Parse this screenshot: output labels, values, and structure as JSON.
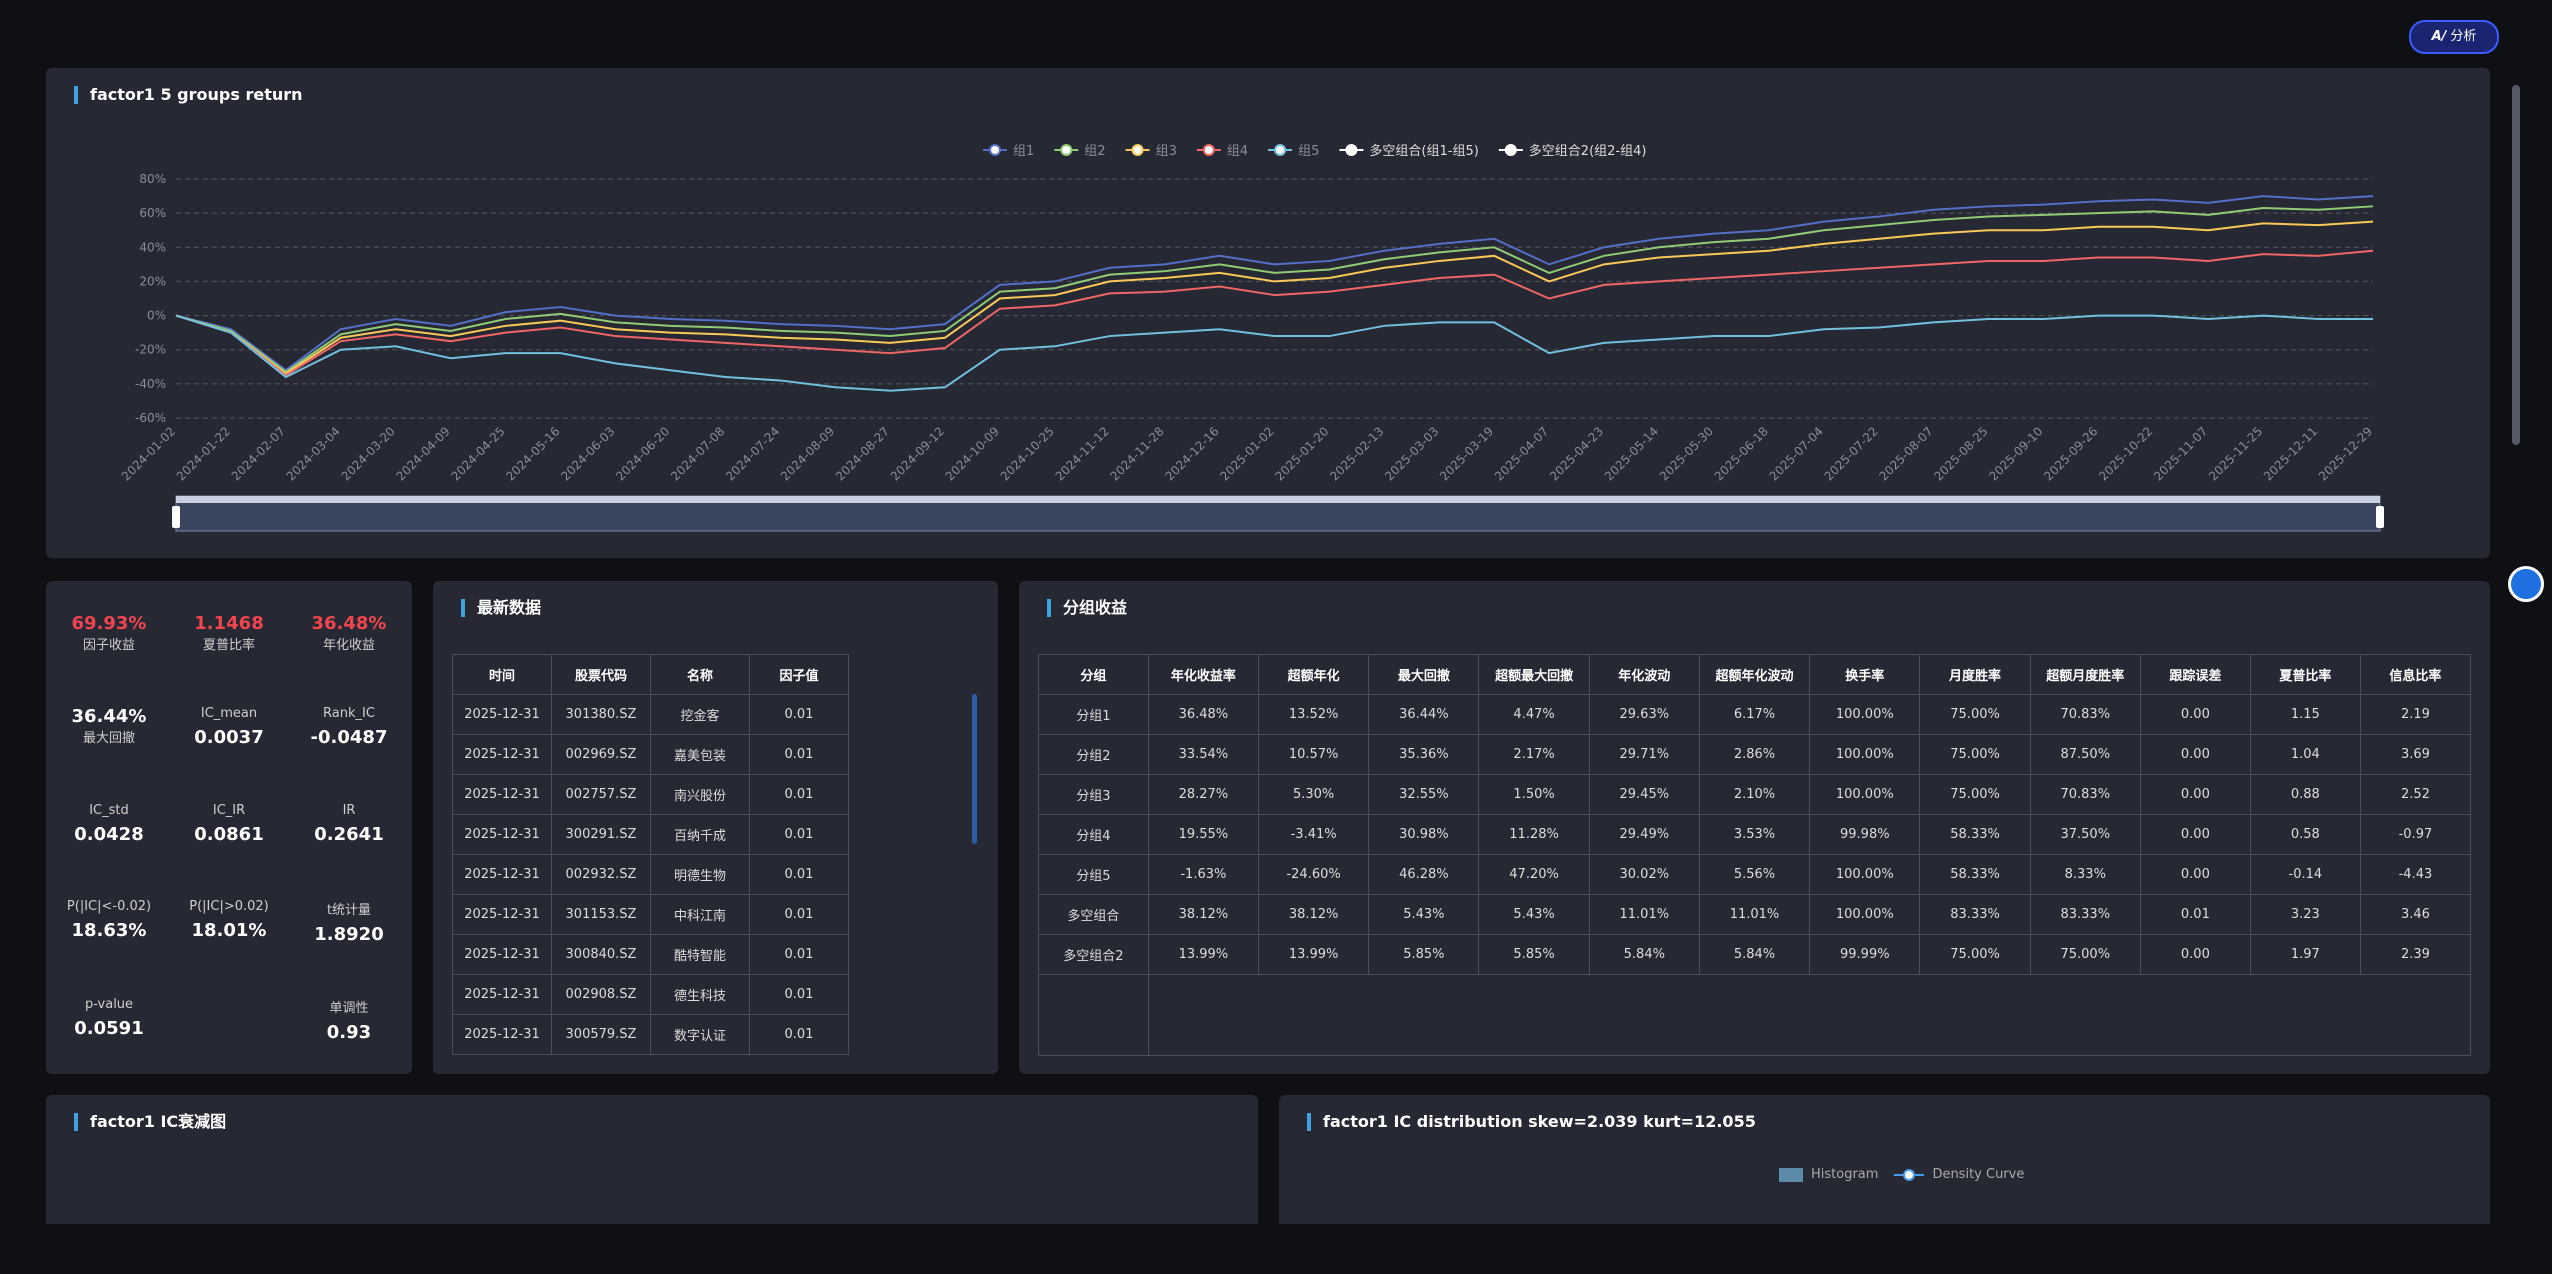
{
  "ai_button": "分析",
  "chart_data": {
    "type": "line",
    "title": "factor1 5 groups return",
    "categories": [
      "2024-01-02",
      "2024-01-22",
      "2024-02-07",
      "2024-03-04",
      "2024-03-20",
      "2024-04-09",
      "2024-04-25",
      "2024-05-16",
      "2024-06-03",
      "2024-06-20",
      "2024-07-08",
      "2024-07-24",
      "2024-08-09",
      "2024-08-27",
      "2024-09-12",
      "2024-10-09",
      "2024-10-25",
      "2024-11-12",
      "2024-11-28",
      "2024-12-16",
      "2025-01-02",
      "2025-01-20",
      "2025-02-13",
      "2025-03-03",
      "2025-03-19",
      "2025-04-07",
      "2025-04-23",
      "2025-05-14",
      "2025-05-30",
      "2025-06-18",
      "2025-07-04",
      "2025-07-22",
      "2025-08-07",
      "2025-08-25",
      "2025-09-10",
      "2025-09-26",
      "2025-10-22",
      "2025-11-07",
      "2025-11-25",
      "2025-12-11",
      "2025-12-29"
    ],
    "series": [
      {
        "name": "组1",
        "color": "#5470c6",
        "values": [
          0,
          -8,
          -32,
          -8,
          -2,
          -6,
          2,
          5,
          0,
          -2,
          -3,
          -5,
          -6,
          -8,
          -5,
          18,
          20,
          28,
          30,
          35,
          30,
          32,
          38,
          42,
          45,
          30,
          40,
          45,
          48,
          50,
          55,
          58,
          62,
          64,
          65,
          67,
          68,
          66,
          70,
          68,
          70
        ]
      },
      {
        "name": "组2",
        "color": "#91cc75",
        "values": [
          0,
          -9,
          -33,
          -11,
          -5,
          -9,
          -2,
          1,
          -4,
          -6,
          -7,
          -9,
          -10,
          -12,
          -9,
          14,
          16,
          24,
          26,
          30,
          25,
          27,
          33,
          37,
          40,
          25,
          35,
          40,
          43,
          45,
          50,
          53,
          56,
          58,
          59,
          60,
          61,
          59,
          63,
          62,
          64
        ]
      },
      {
        "name": "组3",
        "color": "#fac858",
        "values": [
          0,
          -10,
          -34,
          -13,
          -8,
          -12,
          -6,
          -3,
          -8,
          -10,
          -11,
          -13,
          -14,
          -16,
          -13,
          10,
          12,
          20,
          22,
          25,
          20,
          22,
          28,
          32,
          35,
          20,
          30,
          34,
          36,
          38,
          42,
          45,
          48,
          50,
          50,
          52,
          52,
          50,
          54,
          53,
          55
        ]
      },
      {
        "name": "组4",
        "color": "#ee6666",
        "values": [
          0,
          -10,
          -35,
          -15,
          -11,
          -15,
          -10,
          -7,
          -12,
          -14,
          -16,
          -18,
          -20,
          -22,
          -19,
          4,
          6,
          13,
          14,
          17,
          12,
          14,
          18,
          22,
          24,
          10,
          18,
          20,
          22,
          24,
          26,
          28,
          30,
          32,
          32,
          34,
          34,
          32,
          36,
          35,
          38
        ]
      },
      {
        "name": "组5",
        "color": "#73c0de",
        "values": [
          0,
          -10,
          -36,
          -20,
          -18,
          -25,
          -22,
          -22,
          -28,
          -32,
          -36,
          -38,
          -42,
          -44,
          -42,
          -20,
          -18,
          -12,
          -10,
          -8,
          -12,
          -12,
          -6,
          -4,
          -4,
          -22,
          -16,
          -14,
          -12,
          -12,
          -8,
          -7,
          -4,
          -2,
          -2,
          0,
          0,
          -2,
          0,
          -2,
          -2
        ]
      },
      {
        "name": "多空组合(组1-组5)",
        "color": "#ffffff",
        "values": [
          null,
          null,
          null,
          null,
          null,
          null,
          null,
          null,
          null,
          null,
          null,
          null,
          null,
          null,
          null,
          null,
          null,
          null,
          null,
          null,
          null,
          null,
          null,
          null,
          null,
          null,
          null,
          null,
          null,
          null,
          null,
          null,
          null,
          null,
          null,
          null,
          null,
          null,
          null,
          null,
          null
        ]
      },
      {
        "name": "多空组合2(组2-组4)",
        "color": "#ffffff",
        "values": [
          null,
          null,
          null,
          null,
          null,
          null,
          null,
          null,
          null,
          null,
          null,
          null,
          null,
          null,
          null,
          null,
          null,
          null,
          null,
          null,
          null,
          null,
          null,
          null,
          null,
          null,
          null,
          null,
          null,
          null,
          null,
          null,
          null,
          null,
          null,
          null,
          null,
          null,
          null,
          null,
          null
        ]
      }
    ],
    "ylim": [
      -60,
      80
    ],
    "yticks": [
      {
        "value": -60,
        "label": "-60%"
      },
      {
        "value": -40,
        "label": "-40%"
      },
      {
        "value": -20,
        "label": "-20%"
      },
      {
        "value": 0,
        "label": "0%"
      },
      {
        "value": 20,
        "label": "20%"
      },
      {
        "value": 40,
        "label": "40%"
      },
      {
        "value": 60,
        "label": "60%"
      },
      {
        "value": 80,
        "label": "80%"
      }
    ],
    "grid": true
  },
  "metrics": [
    {
      "value": "69.93%",
      "label": "因子收益",
      "color": "#f0454f"
    },
    {
      "value": "1.1468",
      "label": "夏普比率",
      "color": "#f0454f"
    },
    {
      "value": "36.48%",
      "label": "年化收益",
      "color": "#f0454f"
    },
    {
      "value": "36.44%",
      "label": "最大回撤",
      "color": "#ffffff"
    },
    {
      "value": "0.0037",
      "label": "IC_mean",
      "color": "#ffffff"
    },
    {
      "value": "-0.0487",
      "label": "Rank_IC",
      "color": "#ffffff"
    },
    {
      "value": "0.0428",
      "label": "IC_std",
      "color": "#ffffff"
    },
    {
      "value": "0.0861",
      "label": "IC_IR",
      "color": "#ffffff"
    },
    {
      "value": "0.2641",
      "label": "IR",
      "color": "#ffffff"
    },
    {
      "value": "18.63%",
      "label": "P(|IC|<-0.02)",
      "color": "#ffffff"
    },
    {
      "value": "18.01%",
      "label": "P(|IC|>0.02)",
      "color": "#ffffff"
    },
    {
      "value": "1.8920",
      "label": "t统计量",
      "color": "#ffffff"
    },
    {
      "value": "0.0591",
      "label": "p-value",
      "color": "#ffffff"
    },
    {
      "value": "0.93",
      "label": "单调性",
      "color": "#ffffff"
    }
  ],
  "latest": {
    "title": "最新数据",
    "columns": [
      "时间",
      "股票代码",
      "名称",
      "因子值"
    ],
    "rows": [
      [
        "2025-12-31",
        "301380.SZ",
        "挖金客",
        "0.01"
      ],
      [
        "2025-12-31",
        "002969.SZ",
        "嘉美包装",
        "0.01"
      ],
      [
        "2025-12-31",
        "002757.SZ",
        "南兴股份",
        "0.01"
      ],
      [
        "2025-12-31",
        "300291.SZ",
        "百纳千成",
        "0.01"
      ],
      [
        "2025-12-31",
        "002932.SZ",
        "明德生物",
        "0.01"
      ],
      [
        "2025-12-31",
        "301153.SZ",
        "中科江南",
        "0.01"
      ],
      [
        "2025-12-31",
        "300840.SZ",
        "酷特智能",
        "0.01"
      ],
      [
        "2025-12-31",
        "002908.SZ",
        "德生科技",
        "0.01"
      ],
      [
        "2025-12-31",
        "300579.SZ",
        "数字认证",
        "0.01"
      ]
    ]
  },
  "groups": {
    "title": "分组收益",
    "columns": [
      "分组",
      "年化收益率",
      "超额年化",
      "最大回撤",
      "超额最大回撤",
      "年化波动",
      "超额年化波动",
      "换手率",
      "月度胜率",
      "超额月度胜率",
      "跟踪误差",
      "夏普比率",
      "信息比率"
    ],
    "rows": [
      [
        "分组1",
        "36.48%",
        "13.52%",
        "36.44%",
        "4.47%",
        "29.63%",
        "6.17%",
        "100.00%",
        "75.00%",
        "70.83%",
        "0.00",
        "1.15",
        "2.19"
      ],
      [
        "分组2",
        "33.54%",
        "10.57%",
        "35.36%",
        "2.17%",
        "29.71%",
        "2.86%",
        "100.00%",
        "75.00%",
        "87.50%",
        "0.00",
        "1.04",
        "3.69"
      ],
      [
        "分组3",
        "28.27%",
        "5.30%",
        "32.55%",
        "1.50%",
        "29.45%",
        "2.10%",
        "100.00%",
        "75.00%",
        "70.83%",
        "0.00",
        "0.88",
        "2.52"
      ],
      [
        "分组4",
        "19.55%",
        "-3.41%",
        "30.98%",
        "11.28%",
        "29.49%",
        "3.53%",
        "99.98%",
        "58.33%",
        "37.50%",
        "0.00",
        "0.58",
        "-0.97"
      ],
      [
        "分组5",
        "-1.63%",
        "-24.60%",
        "46.28%",
        "47.20%",
        "30.02%",
        "5.56%",
        "100.00%",
        "58.33%",
        "8.33%",
        "0.00",
        "-0.14",
        "-4.43"
      ],
      [
        "多空组合",
        "38.12%",
        "38.12%",
        "5.43%",
        "5.43%",
        "11.01%",
        "11.01%",
        "100.00%",
        "83.33%",
        "83.33%",
        "0.01",
        "3.23",
        "3.46"
      ],
      [
        "多空组合2",
        "13.99%",
        "13.99%",
        "5.85%",
        "5.85%",
        "5.84%",
        "5.84%",
        "99.99%",
        "75.00%",
        "75.00%",
        "0.00",
        "1.97",
        "2.39"
      ]
    ]
  },
  "ic_decay": {
    "title": "factor1 IC衰减图"
  },
  "ic_dist": {
    "title": "factor1 IC distribution skew=2.039 kurt=12.055",
    "legend": [
      "Histogram",
      "Density Curve"
    ]
  }
}
